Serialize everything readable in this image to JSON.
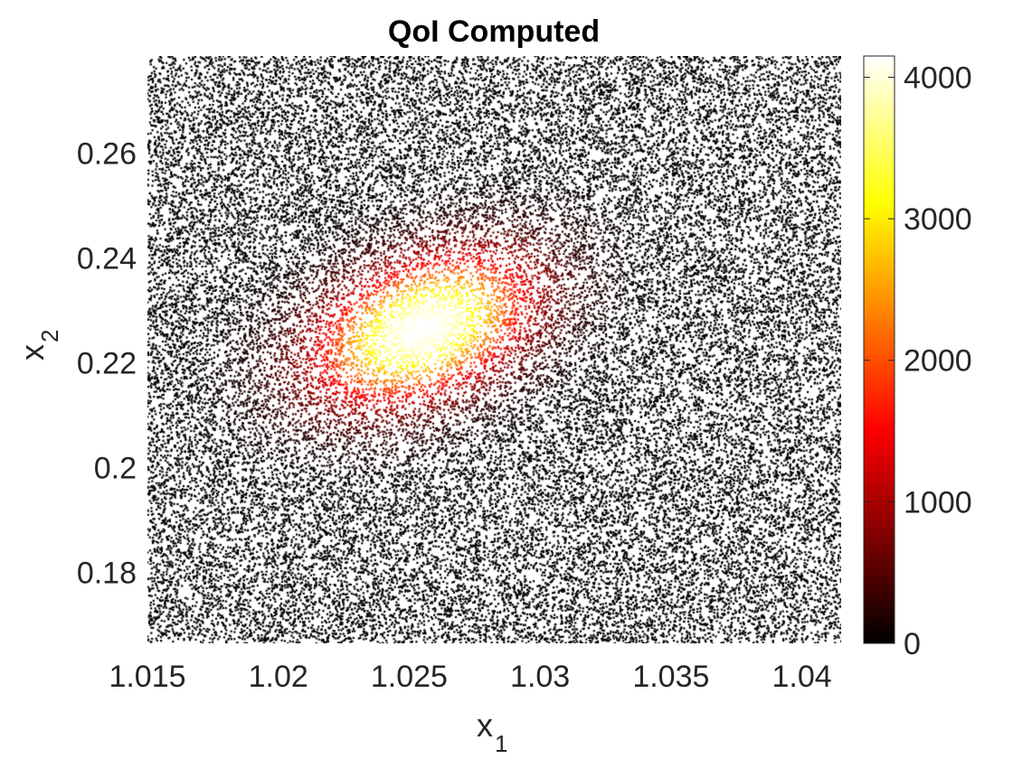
{
  "chart_data": {
    "type": "scatter",
    "title": "QoI Computed",
    "xlabel": {
      "base": "x",
      "subscript": "1"
    },
    "ylabel": {
      "base": "x",
      "subscript": "2"
    },
    "xlim": [
      1.015,
      1.0415
    ],
    "ylim": [
      0.1665,
      0.2785
    ],
    "xticks": [
      1.015,
      1.02,
      1.025,
      1.03,
      1.035,
      1.04
    ],
    "xtick_labels": [
      "1.015",
      "1.02",
      "1.025",
      "1.03",
      "1.035",
      "1.04"
    ],
    "yticks": [
      0.18,
      0.2,
      0.22,
      0.24,
      0.26
    ],
    "ytick_labels": [
      "0.18",
      "0.2",
      "0.22",
      "0.24",
      "0.26"
    ],
    "grid": false,
    "point_count": 40000,
    "colormap": "hot",
    "colorbar": {
      "limits": [
        0,
        4150
      ],
      "ticks": [
        0,
        1000,
        2000,
        3000,
        4000
      ],
      "tick_labels": [
        "0",
        "1000",
        "2000",
        "3000",
        "4000"
      ],
      "colors": [
        "#000000",
        "#ff0000",
        "#ffff00",
        "#ffffff"
      ]
    },
    "density_peak": {
      "x": 1.0255,
      "y": 0.2265,
      "value": 4150,
      "orientation": "tilted up-right"
    }
  }
}
